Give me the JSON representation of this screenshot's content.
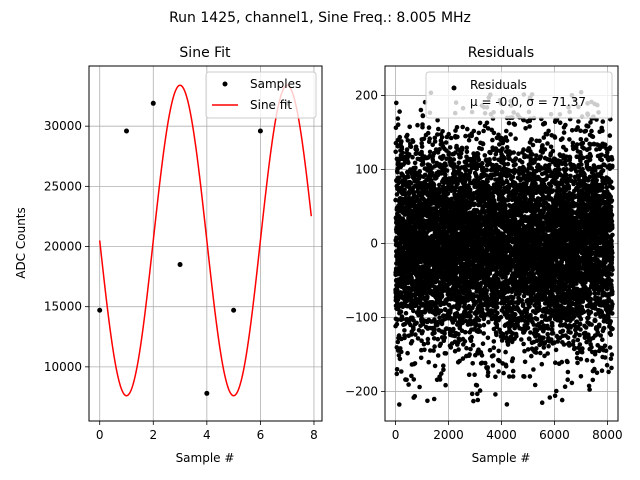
{
  "suptitle": "Run 1425, channel1, Sine Freq.: 8.005 MHz",
  "chart_data": [
    {
      "type": "line",
      "title": "Sine Fit",
      "xlabel": "Sample #",
      "ylabel": "ADC Counts",
      "xlim": [
        -0.4,
        8.3
      ],
      "ylim": [
        5500,
        35000
      ],
      "xticks": [
        0,
        2,
        4,
        6,
        8
      ],
      "yticks": [
        10000,
        15000,
        20000,
        25000,
        30000
      ],
      "grid": true,
      "legend_position": "top-right",
      "series": [
        {
          "name": "Samples",
          "kind": "scatter",
          "color": "#000000",
          "x": [
            0,
            1,
            2,
            3,
            4,
            5,
            6,
            7
          ],
          "y": [
            14700,
            29600,
            31900,
            18500,
            7800,
            14700,
            29600,
            31900
          ]
        },
        {
          "name": "Sine fit",
          "kind": "line",
          "color": "#ff0000",
          "model": {
            "offset": 20500,
            "amplitude": 12900,
            "period_samples": 4.0,
            "phase_deg": -180
          },
          "x_range": [
            0,
            7.9
          ]
        }
      ]
    },
    {
      "type": "scatter",
      "title": "Residuals",
      "xlabel": "Sample #",
      "ylabel": "",
      "xlim": [
        -400,
        8400
      ],
      "ylim": [
        -240,
        240
      ],
      "xticks": [
        0,
        2000,
        4000,
        6000,
        8000
      ],
      "yticks": [
        -200,
        -100,
        0,
        100,
        200
      ],
      "grid": true,
      "legend_position": "top-right",
      "series": [
        {
          "name": "Residuals",
          "color": "#000000",
          "n_points": 8192,
          "x_range": [
            0,
            8191
          ],
          "mean": -0.0,
          "sigma": 71.37,
          "range": [
            -220,
            210
          ]
        }
      ],
      "legend_stats": "μ = -0.0, σ = 71.37"
    }
  ]
}
